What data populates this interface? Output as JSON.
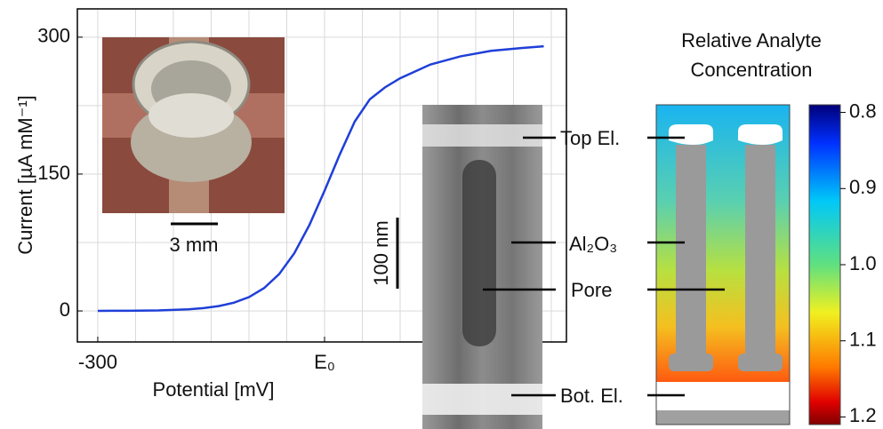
{
  "chart_data": {
    "type": "line",
    "x_label": "Potential [mV]",
    "y_label": "Current [µA mM⁻¹]",
    "xlim": [
      -327,
      320
    ],
    "ylim": [
      -34,
      331
    ],
    "xticks": [
      -300,
      {
        "value": 0,
        "label": "E₀"
      }
    ],
    "yticks": [
      0,
      150,
      300
    ],
    "xgrid": [
      -300,
      -250,
      -200,
      -150,
      -100,
      -50,
      0,
      50,
      100,
      150,
      200,
      250,
      300
    ],
    "ygrid": [
      0,
      75,
      150,
      225,
      300
    ],
    "grid": true,
    "x": [
      -300,
      -260,
      -220,
      -180,
      -160,
      -140,
      -120,
      -100,
      -80,
      -60,
      -40,
      -20,
      0,
      20,
      40,
      60,
      80,
      100,
      140,
      180,
      220,
      260,
      290
    ],
    "series": [
      {
        "color": "#1f3fd8",
        "values": [
          0.1,
          0.2,
          0.6,
          1.8,
          3.1,
          5.3,
          9.0,
          15.1,
          25.0,
          40.4,
          63.2,
          94.2,
          131.7,
          171.2,
          207.6,
          232,
          245,
          255,
          270,
          279,
          285,
          288,
          290
        ]
      }
    ]
  },
  "photo": {
    "scale_label": "3 mm"
  },
  "sem": {
    "scale_label": "100 nm"
  },
  "labels": [
    "Top El.",
    "Al₂O₃",
    "Pore",
    "Bot. El."
  ],
  "simulation": {
    "title": [
      "Relative Analyte",
      "Concentration"
    ],
    "colorbar": {
      "lim": [
        0.79,
        1.21
      ],
      "ticks": [
        0.8,
        0.9,
        {
          "value": 1,
          "label": "1.0"
        },
        1.1,
        1.2
      ]
    }
  }
}
